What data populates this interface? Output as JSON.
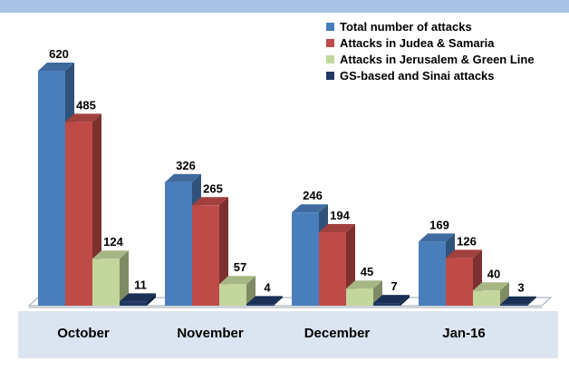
{
  "chart_data": {
    "type": "bar",
    "style": "3d-clustered-column",
    "title": "",
    "xlabel": "",
    "ylabel": "",
    "ylim": [
      0,
      700
    ],
    "grid": false,
    "legend_position": "top-right",
    "categories": [
      "October",
      "November",
      "December",
      "Jan-16"
    ],
    "series": [
      {
        "name": "Total number of attacks",
        "color": "#4a7ebb",
        "values": [
          620,
          326,
          246,
          169
        ]
      },
      {
        "name": "Attacks in Judea & Samaria",
        "color": "#be4b48",
        "values": [
          485,
          265,
          194,
          126
        ]
      },
      {
        "name": "Attacks in Jerusalem & Green Line",
        "color": "#c3d69b",
        "values": [
          124,
          57,
          45,
          40
        ]
      },
      {
        "name": "GS-based and Sinai attacks",
        "color": "#1f3864",
        "values": [
          11,
          4,
          7,
          3
        ]
      }
    ]
  },
  "colors": {
    "top_band": "#a9c1e5",
    "category_band": "#dbe5f1",
    "floor": "#ffffff",
    "floor_edge": "#9aa5b1"
  }
}
